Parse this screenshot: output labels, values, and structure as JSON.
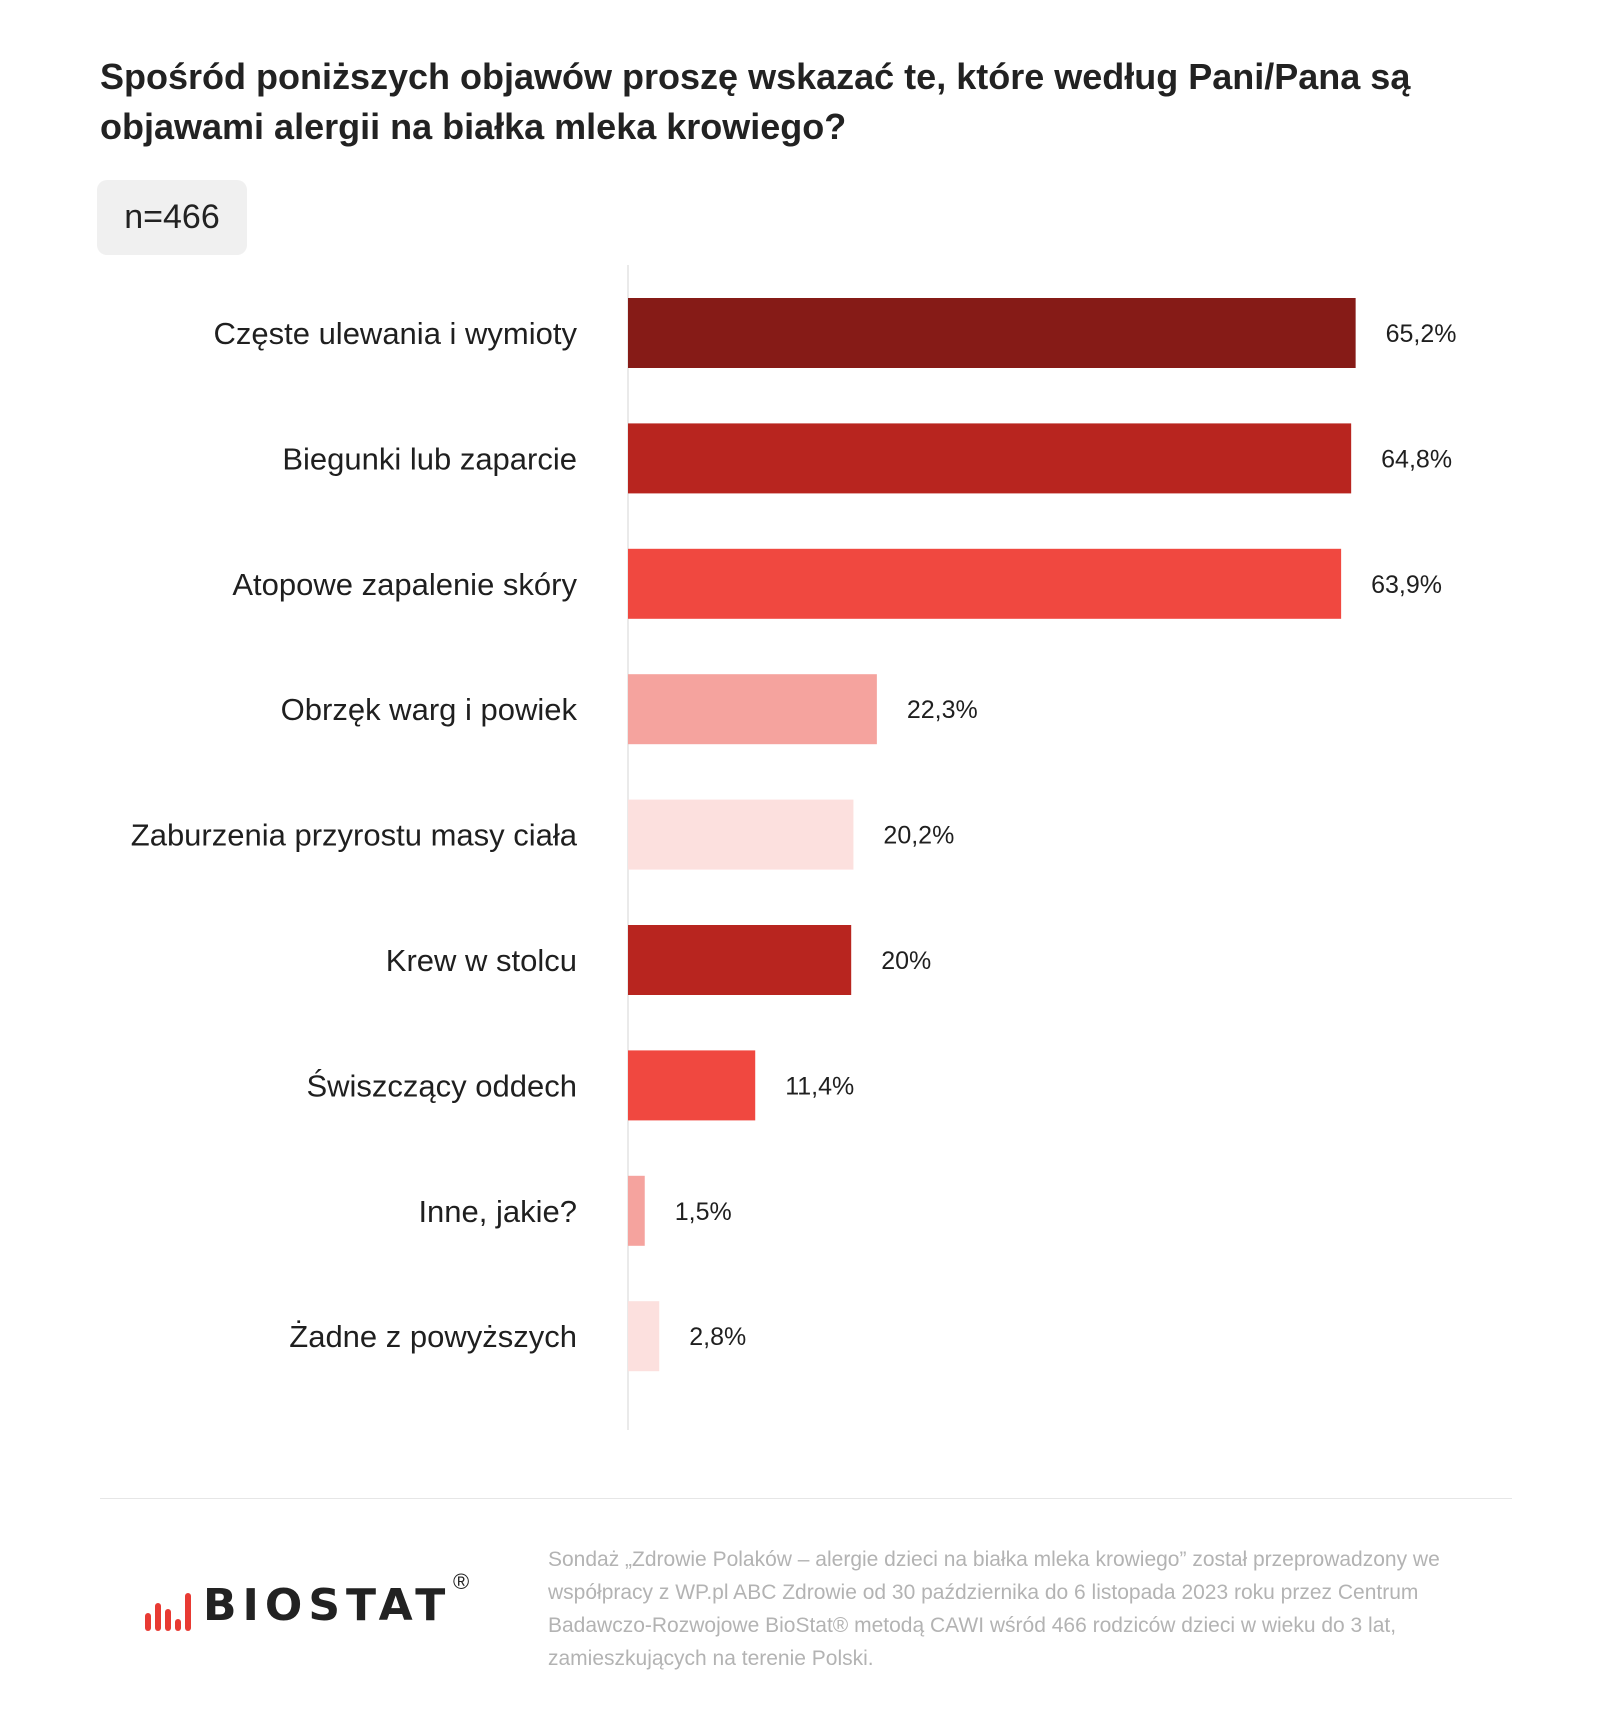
{
  "colors": {
    "background": "#ffffff",
    "dark_red": "#861b17",
    "red": "#b8251f",
    "bright_red": "#f04840",
    "pink": "#f5a39e",
    "light_pink": "#fce0de",
    "footnote": "#b3b3b3",
    "badge_bg": "#f0f0f0"
  },
  "header": {
    "title": "Spośród poniższych objawów proszę wskazać te, które według Pani/Pana są objawami alergii na białka mleka krowiego?",
    "sample_badge": "n=466"
  },
  "chart_data": {
    "type": "bar",
    "orientation": "horizontal",
    "categories": [
      "Częste ulewania i wymioty",
      "Biegunki lub zaparcie",
      "Atopowe zapalenie skóry",
      "Obrzęk warg i powiek",
      "Zaburzenia przyrostu masy ciała",
      "Krew w stolcu",
      "Świszczący oddech",
      "Inne, jakie?",
      "Żadne z powyższych"
    ],
    "values": [
      65.2,
      64.8,
      63.9,
      22.3,
      20.2,
      20,
      11.4,
      1.5,
      2.8
    ],
    "value_labels": [
      "65,2%",
      "64,8%",
      "63,9%",
      "22,3%",
      "20,2%",
      "20%",
      "11,4%",
      "1,5%",
      "2,8%"
    ],
    "bar_colors": [
      "#861b17",
      "#b8251f",
      "#f04840",
      "#f5a39e",
      "#fce0de",
      "#b8251f",
      "#f04840",
      "#f5a39e",
      "#fce0de"
    ],
    "unit": "%",
    "xlim": [
      0,
      100
    ],
    "grid": false,
    "legend": "none"
  },
  "footer": {
    "logo_text": "BIOSTAT",
    "logo_reg": "®",
    "footnote": "Sondaż „Zdrowie Polaków – alergie dzieci na białka mleka krowiego” został przeprowadzony we współpracy z WP.pl ABC Zdrowie od 30 października do 6 listopada 2023 roku przez Centrum Badawczo-Rozwojowe BioStat® metodą CAWI wśród 466 rodziców dzieci w wieku do 3 lat, zamieszkujących na terenie Polski."
  }
}
